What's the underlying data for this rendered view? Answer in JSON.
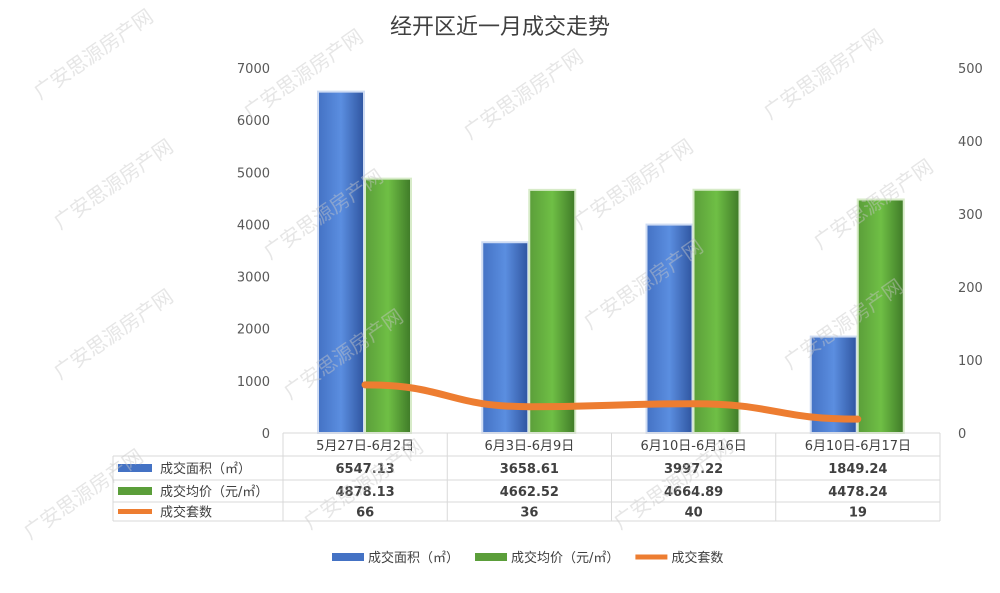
{
  "chart_data": {
    "type": "bar",
    "title": "经开区近一月成交走势",
    "categories": [
      "5月27日-6月2日",
      "6月3日-6月9日",
      "6月10日-6月16日",
      "6月10日-6月17日"
    ],
    "series": [
      {
        "name": "成交面积（㎡）",
        "type": "bar",
        "axis": "left",
        "color": "#4472c4",
        "values": [
          6547.13,
          3658.61,
          3997.22,
          1849.24
        ],
        "labels": [
          "6547.13",
          "3658.61",
          "3997.22",
          "1849.24"
        ]
      },
      {
        "name": "成交均价（元/㎡）",
        "type": "bar",
        "axis": "left",
        "color": "#5b9e3a",
        "values": [
          4878.13,
          4662.52,
          4664.89,
          4478.24
        ],
        "labels": [
          "4878.13",
          "4662.52",
          "4664.89",
          "4478.24"
        ]
      },
      {
        "name": "成交套数",
        "type": "line",
        "axis": "right",
        "color": "#ed7d31",
        "values": [
          66,
          36,
          40,
          19
        ],
        "labels": [
          "66",
          "36",
          "40",
          "19"
        ]
      }
    ],
    "ylim": [
      0,
      7000
    ],
    "yticks": [
      "0",
      "1000",
      "2000",
      "3000",
      "4000",
      "5000",
      "6000",
      "7000"
    ],
    "y2lim": [
      0,
      500
    ],
    "y2ticks": [
      "0",
      "100",
      "200",
      "300",
      "400",
      "500"
    ],
    "grid": false,
    "legend": "bottom",
    "data_table": true
  },
  "watermark": "广安思源房产网"
}
